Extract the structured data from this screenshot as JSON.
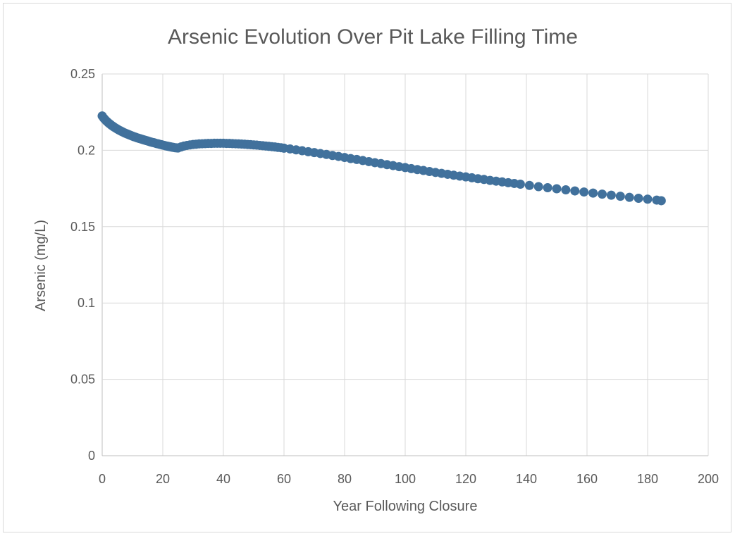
{
  "chart_data": {
    "type": "scatter",
    "title": "Arsenic Evolution Over Pit Lake Filling Time",
    "xlabel": "Year Following Closure",
    "ylabel": "Arsenic (mg/L)",
    "xlim": [
      0,
      200
    ],
    "ylim": [
      0,
      0.25
    ],
    "x_ticks": [
      "0",
      "20",
      "40",
      "60",
      "80",
      "100",
      "120",
      "140",
      "160",
      "180",
      "200"
    ],
    "y_ticks": [
      "0",
      "0.05",
      "0.1",
      "0.15",
      "0.2",
      "0.25"
    ],
    "grid": true,
    "legend": "none",
    "marker_color": "#41719c",
    "series": [
      {
        "x": [
          0,
          0.5,
          1,
          1.5,
          2,
          2.5,
          3,
          3.5,
          4,
          4.5,
          5,
          5.5,
          6,
          6.5,
          7,
          7.5,
          8,
          8.5,
          9,
          9.5,
          10,
          10.5,
          11,
          11.5,
          12,
          12.5,
          13,
          13.5,
          14,
          14.5,
          15,
          15.5,
          16,
          16.5,
          17,
          17.5,
          18,
          18.5,
          19,
          19.5,
          20,
          20.5,
          21,
          21.5,
          22,
          22.5,
          23,
          23.5,
          24,
          24.5,
          25,
          26,
          27,
          28,
          29,
          30,
          31,
          32,
          33,
          34,
          35,
          36,
          37,
          38,
          39,
          40,
          41,
          42,
          43,
          44,
          45,
          46,
          47,
          48,
          49,
          50,
          51,
          52,
          53,
          54,
          55,
          56,
          57,
          58,
          59,
          60,
          62,
          64,
          66,
          68,
          70,
          72,
          74,
          76,
          78,
          80,
          82,
          84,
          86,
          88,
          90,
          92,
          94,
          96,
          98,
          100,
          102,
          104,
          106,
          108,
          110,
          112,
          114,
          116,
          118,
          120,
          122,
          124,
          126,
          128,
          130,
          132,
          134,
          136,
          138,
          141,
          144,
          147,
          150,
          153,
          156,
          159,
          162,
          165,
          168,
          171,
          174,
          177,
          180,
          183,
          184.5
        ],
        "y": [
          0.2225,
          0.2211,
          0.22,
          0.219,
          0.2181,
          0.2173,
          0.2165,
          0.2158,
          0.2151,
          0.2145,
          0.2139,
          0.2133,
          0.2128,
          0.2123,
          0.2118,
          0.2113,
          0.2109,
          0.2105,
          0.2101,
          0.2097,
          0.2093,
          0.2089,
          0.2086,
          0.2082,
          0.2079,
          0.2076,
          0.2073,
          0.207,
          0.2067,
          0.2064,
          0.2061,
          0.2058,
          0.2055,
          0.2052,
          0.205,
          0.2047,
          0.2044,
          0.2042,
          0.2039,
          0.2037,
          0.2034,
          0.2032,
          0.2029,
          0.2027,
          0.2025,
          0.2023,
          0.2021,
          0.2019,
          0.2017,
          0.2016,
          0.2015,
          0.2022,
          0.2028,
          0.2032,
          0.2035,
          0.2038,
          0.204,
          0.2042,
          0.2043,
          0.2044,
          0.2045,
          0.2045,
          0.2046,
          0.2046,
          0.2046,
          0.2046,
          0.2045,
          0.2045,
          0.2044,
          0.2043,
          0.2042,
          0.2041,
          0.204,
          0.2038,
          0.2037,
          0.2035,
          0.2034,
          0.2032,
          0.203,
          0.2028,
          0.2026,
          0.2024,
          0.2022,
          0.2019,
          0.2017,
          0.2014,
          0.2009,
          0.2003,
          0.1997,
          0.1991,
          0.1985,
          0.1979,
          0.1973,
          0.1966,
          0.196,
          0.1953,
          0.1946,
          0.194,
          0.1933,
          0.1926,
          0.1919,
          0.1913,
          0.1906,
          0.19,
          0.1893,
          0.1887,
          0.188,
          0.1874,
          0.1868,
          0.1861,
          0.1855,
          0.1849,
          0.1843,
          0.1837,
          0.1831,
          0.1826,
          0.182,
          0.1814,
          0.1809,
          0.1803,
          0.1798,
          0.1793,
          0.1788,
          0.1783,
          0.1778,
          0.177,
          0.1762,
          0.1755,
          0.1748,
          0.1741,
          0.1734,
          0.1727,
          0.172,
          0.1713,
          0.1706,
          0.1699,
          0.1692,
          0.1686,
          0.168,
          0.1674,
          0.167
        ]
      }
    ]
  }
}
